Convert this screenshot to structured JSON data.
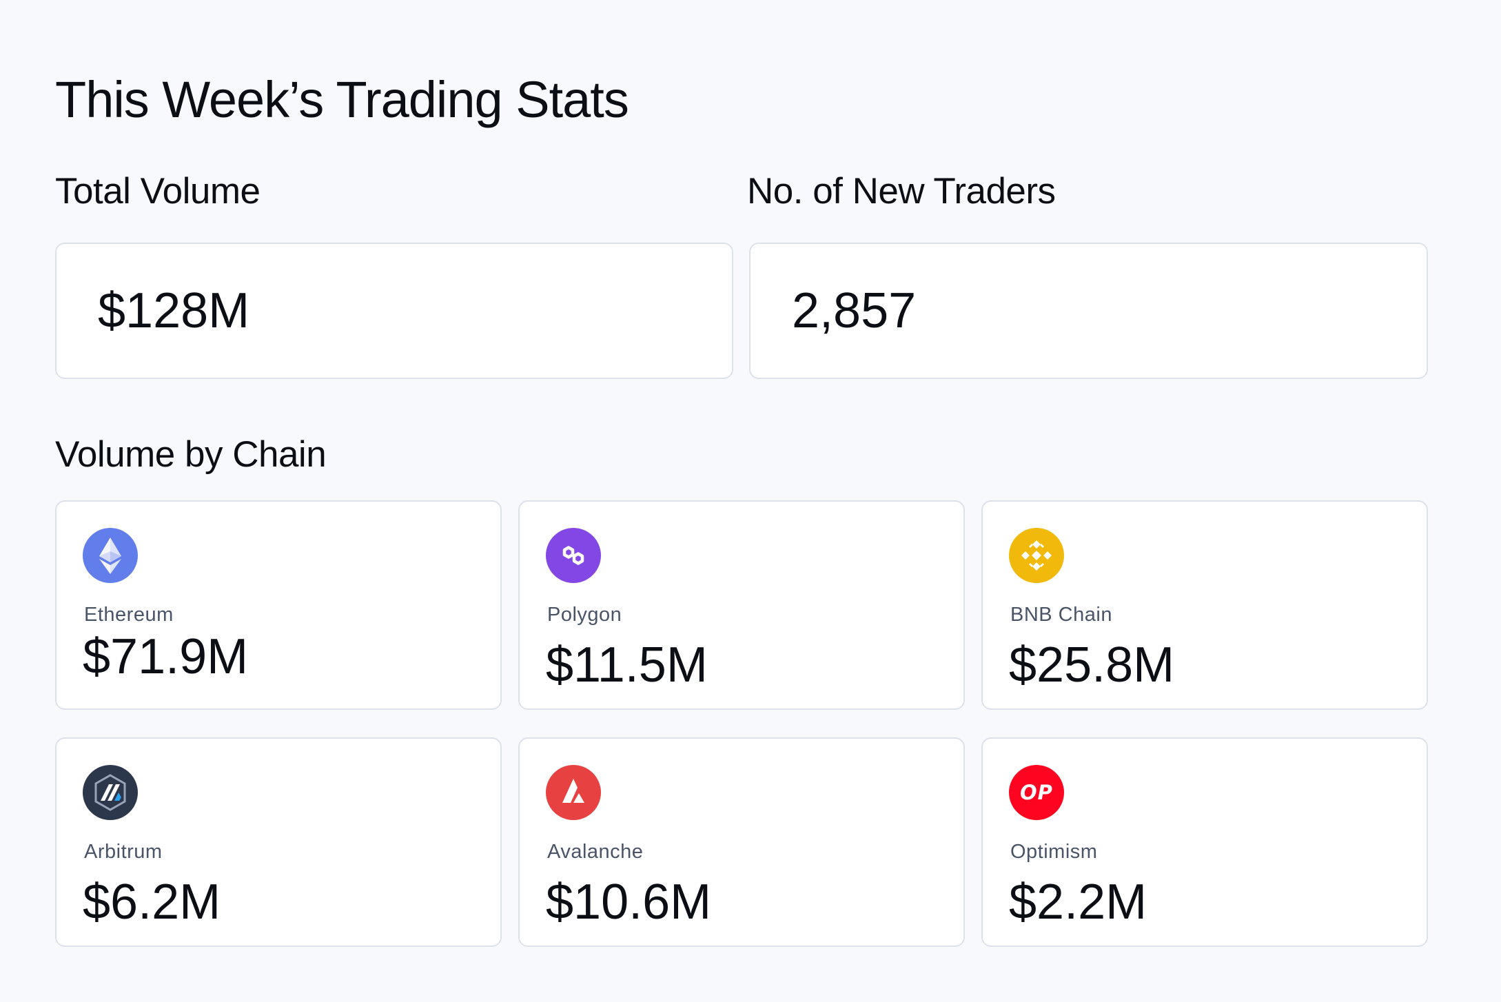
{
  "page": {
    "title": "This Week’s Trading Stats"
  },
  "summary": {
    "total_volume": {
      "label": "Total Volume",
      "value": "$128M"
    },
    "new_traders": {
      "label": "No. of New Traders",
      "value": "2,857"
    }
  },
  "chains": {
    "label": "Volume by Chain",
    "items": [
      {
        "name": "Ethereum",
        "value": "$71.9M",
        "icon": "ethereum-icon",
        "color": "#627eea"
      },
      {
        "name": "Polygon",
        "value": "$11.5M",
        "icon": "polygon-icon",
        "color": "#8247e5"
      },
      {
        "name": "BNB Chain",
        "value": "$25.8M",
        "icon": "bnb-chain-icon",
        "color": "#f0b90b"
      },
      {
        "name": "Arbitrum",
        "value": "$6.2M",
        "icon": "arbitrum-icon",
        "color": "#2d374b"
      },
      {
        "name": "Avalanche",
        "value": "$10.6M",
        "icon": "avalanche-icon",
        "color": "#e84142"
      },
      {
        "name": "Optimism",
        "value": "$2.2M",
        "icon": "optimism-icon",
        "color": "#ff0420",
        "icon_text": "OP"
      }
    ]
  }
}
